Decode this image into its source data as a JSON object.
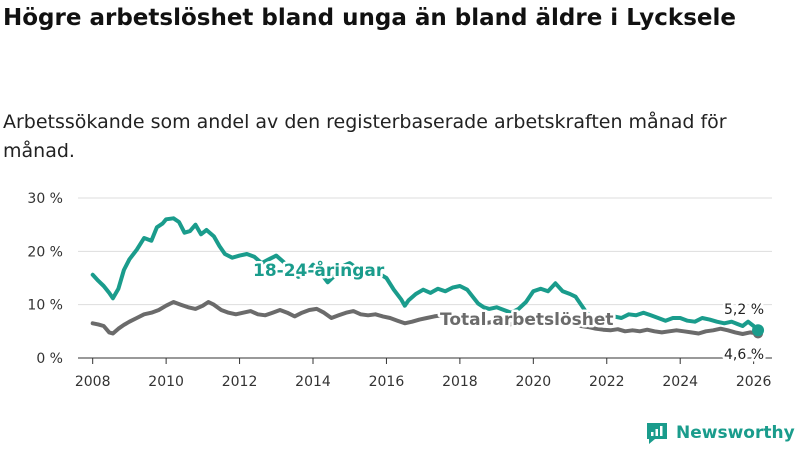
{
  "header": {
    "title": "Högre arbetslöshet bland unga än bland äldre i Lycksele",
    "subtitle": "Arbetssökande som andel av den registerbaserade arbetskraften månad för månad."
  },
  "brand": {
    "name": "Newsworthy"
  },
  "colors": {
    "youth": "#1a9c8c",
    "total": "#6b6b6b",
    "grid": "#dddddd",
    "axis": "#333333"
  },
  "chart_data": {
    "type": "line",
    "title": "Högre arbetslöshet bland unga än bland äldre i Lycksele",
    "subtitle": "Arbetssökande som andel av den registerbaserade arbetskraften månad för månad.",
    "xlabel": "",
    "ylabel": "",
    "xlim": [
      2007.6,
      2026.5
    ],
    "ylim": [
      0,
      30
    ],
    "x_ticks": [
      2008,
      2010,
      2012,
      2014,
      2016,
      2018,
      2020,
      2022,
      2024,
      2026
    ],
    "x_tick_labels": [
      "2008",
      "2010",
      "2012",
      "2014",
      "2016",
      "2018",
      "2020",
      "2022",
      "2024",
      "2026"
    ],
    "y_ticks": [
      0,
      10,
      20,
      30
    ],
    "y_tick_labels": [
      "0 %",
      "10 %",
      "20 %",
      "30 %"
    ],
    "grid": true,
    "series": [
      {
        "name": "18-24-åringar",
        "label": "18-24-åringar",
        "color": "#1a9c8c",
        "end_label": "5,2 %",
        "points": [
          [
            2008.0,
            15.6
          ],
          [
            2008.15,
            14.5
          ],
          [
            2008.3,
            13.5
          ],
          [
            2008.45,
            12.2
          ],
          [
            2008.55,
            11.2
          ],
          [
            2008.7,
            13.0
          ],
          [
            2008.85,
            16.5
          ],
          [
            2009.0,
            18.5
          ],
          [
            2009.2,
            20.3
          ],
          [
            2009.4,
            22.5
          ],
          [
            2009.6,
            22.0
          ],
          [
            2009.75,
            24.5
          ],
          [
            2009.9,
            25.2
          ],
          [
            2010.0,
            26.0
          ],
          [
            2010.2,
            26.2
          ],
          [
            2010.35,
            25.5
          ],
          [
            2010.5,
            23.5
          ],
          [
            2010.65,
            23.8
          ],
          [
            2010.8,
            25.0
          ],
          [
            2010.95,
            23.2
          ],
          [
            2011.1,
            24.0
          ],
          [
            2011.3,
            22.8
          ],
          [
            2011.45,
            21.0
          ],
          [
            2011.6,
            19.5
          ],
          [
            2011.8,
            18.8
          ],
          [
            2012.0,
            19.2
          ],
          [
            2012.2,
            19.5
          ],
          [
            2012.4,
            19.0
          ],
          [
            2012.6,
            17.8
          ],
          [
            2012.8,
            18.5
          ],
          [
            2013.0,
            19.2
          ],
          [
            2013.2,
            18.0
          ],
          [
            2013.4,
            16.5
          ],
          [
            2013.6,
            15.2
          ],
          [
            2013.8,
            15.8
          ],
          [
            2014.0,
            17.5
          ],
          [
            2014.2,
            16.0
          ],
          [
            2014.4,
            14.2
          ],
          [
            2014.6,
            15.5
          ],
          [
            2014.8,
            17.2
          ],
          [
            2015.0,
            17.8
          ],
          [
            2015.2,
            16.8
          ],
          [
            2015.4,
            16.2
          ],
          [
            2015.6,
            16.5
          ],
          [
            2015.8,
            15.8
          ],
          [
            2016.0,
            15.0
          ],
          [
            2016.2,
            12.8
          ],
          [
            2016.4,
            11.0
          ],
          [
            2016.5,
            9.8
          ],
          [
            2016.6,
            10.8
          ],
          [
            2016.8,
            12.0
          ],
          [
            2017.0,
            12.8
          ],
          [
            2017.2,
            12.2
          ],
          [
            2017.4,
            13.0
          ],
          [
            2017.6,
            12.5
          ],
          [
            2017.8,
            13.2
          ],
          [
            2018.0,
            13.5
          ],
          [
            2018.2,
            12.8
          ],
          [
            2018.35,
            11.5
          ],
          [
            2018.5,
            10.2
          ],
          [
            2018.65,
            9.5
          ],
          [
            2018.8,
            9.2
          ],
          [
            2019.0,
            9.5
          ],
          [
            2019.2,
            9.0
          ],
          [
            2019.4,
            8.5
          ],
          [
            2019.6,
            9.2
          ],
          [
            2019.8,
            10.5
          ],
          [
            2020.0,
            12.5
          ],
          [
            2020.2,
            13.0
          ],
          [
            2020.4,
            12.5
          ],
          [
            2020.6,
            14.0
          ],
          [
            2020.8,
            12.5
          ],
          [
            2021.0,
            12.0
          ],
          [
            2021.15,
            11.5
          ],
          [
            2021.3,
            10.0
          ],
          [
            2021.45,
            8.5
          ],
          [
            2021.6,
            7.5
          ],
          [
            2021.8,
            7.0
          ],
          [
            2022.0,
            7.2
          ],
          [
            2022.2,
            7.8
          ],
          [
            2022.4,
            7.5
          ],
          [
            2022.6,
            8.2
          ],
          [
            2022.8,
            8.0
          ],
          [
            2023.0,
            8.5
          ],
          [
            2023.2,
            8.0
          ],
          [
            2023.4,
            7.5
          ],
          [
            2023.6,
            7.0
          ],
          [
            2023.8,
            7.5
          ],
          [
            2024.0,
            7.5
          ],
          [
            2024.2,
            7.0
          ],
          [
            2024.4,
            6.8
          ],
          [
            2024.6,
            7.5
          ],
          [
            2024.8,
            7.2
          ],
          [
            2025.0,
            6.8
          ],
          [
            2025.2,
            6.5
          ],
          [
            2025.4,
            6.8
          ],
          [
            2025.55,
            6.4
          ],
          [
            2025.7,
            6.0
          ],
          [
            2025.85,
            6.8
          ],
          [
            2026.0,
            6.0
          ],
          [
            2026.12,
            5.2
          ]
        ]
      },
      {
        "name": "Total arbetslöshet",
        "label": "Total arbetslöshet",
        "color": "#6b6b6b",
        "end_label": "4,6 %",
        "points": [
          [
            2008.0,
            6.5
          ],
          [
            2008.15,
            6.3
          ],
          [
            2008.3,
            6.0
          ],
          [
            2008.45,
            4.8
          ],
          [
            2008.55,
            4.6
          ],
          [
            2008.7,
            5.5
          ],
          [
            2008.85,
            6.2
          ],
          [
            2009.0,
            6.8
          ],
          [
            2009.2,
            7.5
          ],
          [
            2009.4,
            8.2
          ],
          [
            2009.6,
            8.5
          ],
          [
            2009.8,
            9.0
          ],
          [
            2010.0,
            9.8
          ],
          [
            2010.2,
            10.5
          ],
          [
            2010.4,
            10.0
          ],
          [
            2010.6,
            9.5
          ],
          [
            2010.8,
            9.2
          ],
          [
            2011.0,
            9.8
          ],
          [
            2011.15,
            10.5
          ],
          [
            2011.3,
            10.0
          ],
          [
            2011.5,
            9.0
          ],
          [
            2011.7,
            8.5
          ],
          [
            2011.9,
            8.2
          ],
          [
            2012.1,
            8.5
          ],
          [
            2012.3,
            8.8
          ],
          [
            2012.5,
            8.2
          ],
          [
            2012.7,
            8.0
          ],
          [
            2012.9,
            8.5
          ],
          [
            2013.1,
            9.0
          ],
          [
            2013.3,
            8.5
          ],
          [
            2013.5,
            7.8
          ],
          [
            2013.7,
            8.5
          ],
          [
            2013.9,
            9.0
          ],
          [
            2014.1,
            9.2
          ],
          [
            2014.3,
            8.5
          ],
          [
            2014.5,
            7.5
          ],
          [
            2014.7,
            8.0
          ],
          [
            2014.9,
            8.5
          ],
          [
            2015.1,
            8.8
          ],
          [
            2015.3,
            8.2
          ],
          [
            2015.5,
            8.0
          ],
          [
            2015.7,
            8.2
          ],
          [
            2015.9,
            7.8
          ],
          [
            2016.1,
            7.5
          ],
          [
            2016.3,
            7.0
          ],
          [
            2016.5,
            6.5
          ],
          [
            2016.7,
            6.8
          ],
          [
            2016.9,
            7.2
          ],
          [
            2017.1,
            7.5
          ],
          [
            2017.3,
            7.8
          ],
          [
            2017.5,
            8.0
          ],
          [
            2017.7,
            7.5
          ],
          [
            2017.9,
            7.2
          ],
          [
            2018.1,
            7.5
          ],
          [
            2018.3,
            7.0
          ],
          [
            2018.5,
            6.8
          ],
          [
            2018.7,
            6.5
          ],
          [
            2018.9,
            6.8
          ],
          [
            2019.1,
            6.5
          ],
          [
            2019.3,
            6.2
          ],
          [
            2019.5,
            6.5
          ],
          [
            2019.7,
            6.8
          ],
          [
            2019.9,
            7.0
          ],
          [
            2020.1,
            7.5
          ],
          [
            2020.3,
            7.8
          ],
          [
            2020.5,
            8.0
          ],
          [
            2020.7,
            7.5
          ],
          [
            2020.9,
            7.0
          ],
          [
            2021.1,
            6.5
          ],
          [
            2021.3,
            6.0
          ],
          [
            2021.5,
            5.8
          ],
          [
            2021.7,
            5.5
          ],
          [
            2021.9,
            5.3
          ],
          [
            2022.1,
            5.2
          ],
          [
            2022.3,
            5.4
          ],
          [
            2022.5,
            5.0
          ],
          [
            2022.7,
            5.2
          ],
          [
            2022.9,
            5.0
          ],
          [
            2023.1,
            5.3
          ],
          [
            2023.3,
            5.0
          ],
          [
            2023.5,
            4.8
          ],
          [
            2023.7,
            5.0
          ],
          [
            2023.9,
            5.2
          ],
          [
            2024.1,
            5.0
          ],
          [
            2024.3,
            4.8
          ],
          [
            2024.5,
            4.6
          ],
          [
            2024.7,
            5.0
          ],
          [
            2024.9,
            5.2
          ],
          [
            2025.1,
            5.5
          ],
          [
            2025.3,
            5.2
          ],
          [
            2025.5,
            4.8
          ],
          [
            2025.7,
            4.5
          ],
          [
            2025.9,
            4.8
          ],
          [
            2026.0,
            4.7
          ],
          [
            2026.12,
            4.6
          ]
        ]
      }
    ]
  }
}
